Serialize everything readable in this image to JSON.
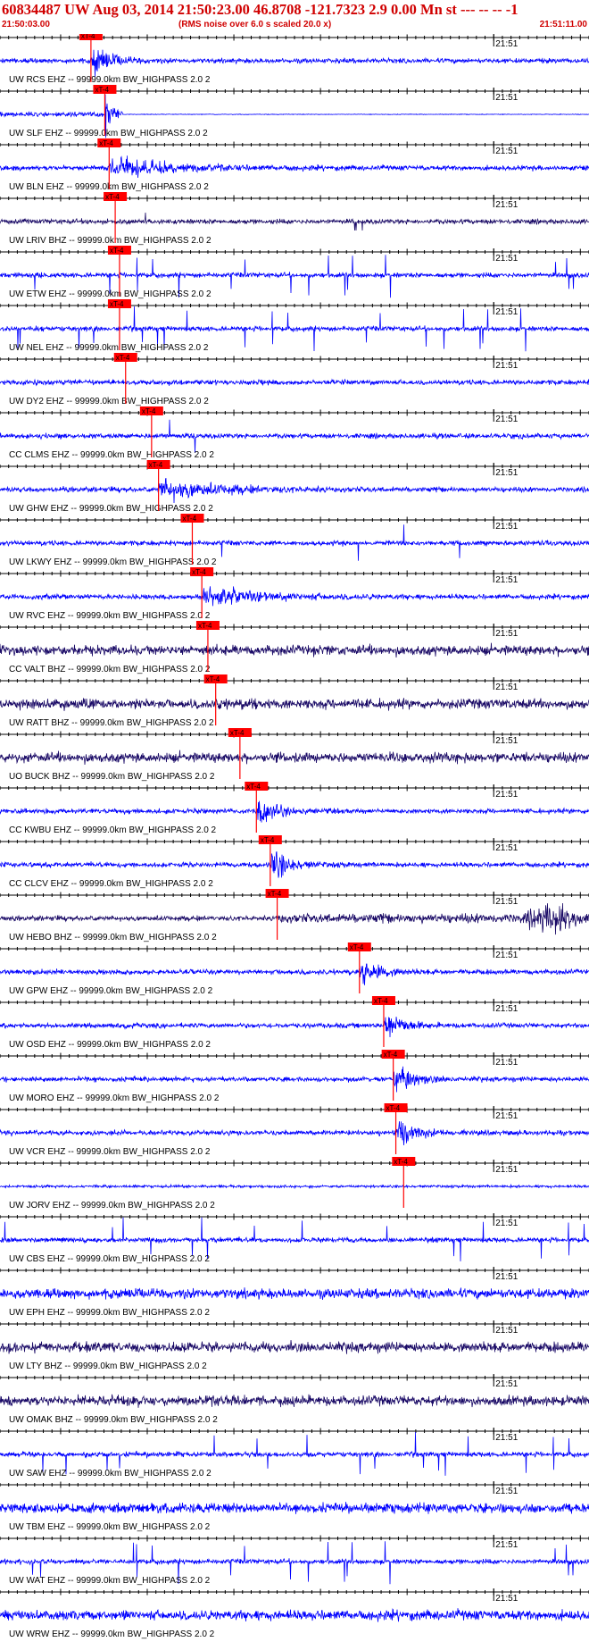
{
  "header": {
    "title": "60834487 UW Aug 03, 2014 21:50:23.00   46.8708 -121.7323  2.9 0.00 Mn st --- -- --  -1",
    "start_time": "21:50:03.00",
    "rms_note": "(RMS noise over 6.0 s scaled 20.0 x)",
    "end_time": "21:51:11.00"
  },
  "colors": {
    "trace": "#0000ff",
    "trace_dark": "#1a0a66",
    "pick": "#ff0000",
    "label_text": "#000000",
    "title_text": "#d00000"
  },
  "chart_data": {
    "type": "line",
    "title": "60834487 UW Aug 03, 2014 21:50:23.00   46.8708 -121.7323  2.9 0.00 Mn st --- -- --  -1",
    "x_range": [
      "21:50:03.00",
      "21:51:11.00"
    ],
    "time_marker": "21:51",
    "pick_label": "xT-4",
    "tick_interval_s": 1,
    "filter": "99999.0km BW_HIGHPASS  2.0  2",
    "traces": [
      {
        "label": "UW RCS EHZ -- 99999.0km BW_HIGHPASS  2.0  2",
        "pick_s": 10.5,
        "style": "burst",
        "dark": false
      },
      {
        "label": "UW SLF EHZ -- 99999.0km BW_HIGHPASS  2.0  2",
        "pick_s": 12.1,
        "style": "flat_after",
        "dark": false
      },
      {
        "label": "UW BLN EHZ -- 99999.0km BW_HIGHPASS  2.0  2",
        "pick_s": 12.6,
        "style": "emergent",
        "dark": false
      },
      {
        "label": "UW LRIV BHZ -- 99999.0km BW_HIGHPASS  2.0  2",
        "pick_s": 13.3,
        "style": "sparse",
        "dark": true
      },
      {
        "label": "UW ETW EHZ -- 99999.0km BW_HIGHPASS  2.0  2",
        "pick_s": 13.8,
        "style": "spiky",
        "dark": false
      },
      {
        "label": "UW NEL EHZ -- 99999.0km BW_HIGHPASS  2.0  2",
        "pick_s": 13.8,
        "style": "spiky",
        "dark": false
      },
      {
        "label": "UW DY2 EHZ -- 99999.0km BW_HIGHPASS  2.0  2",
        "pick_s": 14.5,
        "style": "quiet_spikes",
        "dark": false
      },
      {
        "label": "CC CLMS EHZ -- 99999.0km BW_HIGHPASS  2.0  2",
        "pick_s": 17.5,
        "style": "quiet_spikes",
        "dark": false
      },
      {
        "label": "UW GHW EHZ -- 99999.0km BW_HIGHPASS  2.0  2",
        "pick_s": 18.3,
        "style": "emergent",
        "dark": false
      },
      {
        "label": "UW LKWY EHZ -- 99999.0km BW_HIGHPASS  2.0  2",
        "pick_s": 22.2,
        "style": "quiet_spikes",
        "dark": false
      },
      {
        "label": "UW RVC EHZ -- 99999.0km BW_HIGHPASS  2.0  2",
        "pick_s": 23.3,
        "style": "emergent",
        "dark": false
      },
      {
        "label": "CC VALT BHZ -- 99999.0km BW_HIGHPASS  2.0  2",
        "pick_s": 24.0,
        "style": "noise",
        "dark": true
      },
      {
        "label": "UW RATT BHZ -- 99999.0km BW_HIGHPASS  2.0  2",
        "pick_s": 24.9,
        "style": "noise",
        "dark": true
      },
      {
        "label": "UO BUCK BHZ -- 99999.0km BW_HIGHPASS  2.0  2",
        "pick_s": 27.7,
        "style": "noise",
        "dark": true
      },
      {
        "label": "CC KWBU EHZ -- 99999.0km BW_HIGHPASS  2.0  2",
        "pick_s": 29.6,
        "style": "burst",
        "dark": false
      },
      {
        "label": "CC CLCV EHZ -- 99999.0km BW_HIGHPASS  2.0  2",
        "pick_s": 31.2,
        "style": "burst",
        "dark": false
      },
      {
        "label": "UW HEBO BHZ -- 99999.0km BW_HIGHPASS  2.0  2",
        "pick_s": 32.0,
        "style": "late_burst",
        "dark": true
      },
      {
        "label": "UW GPW EHZ -- 99999.0km BW_HIGHPASS  2.0  2",
        "pick_s": 41.5,
        "style": "burst",
        "dark": false
      },
      {
        "label": "UW OSD EHZ -- 99999.0km BW_HIGHPASS  2.0  2",
        "pick_s": 44.3,
        "style": "burst",
        "dark": false
      },
      {
        "label": "UW MORO EHZ -- 99999.0km BW_HIGHPASS  2.0  2",
        "pick_s": 45.4,
        "style": "burst",
        "dark": false
      },
      {
        "label": "UW VCR EHZ -- 99999.0km BW_HIGHPASS  2.0  2",
        "pick_s": 45.7,
        "style": "burst",
        "dark": false
      },
      {
        "label": "UW JORV EHZ -- 99999.0km BW_HIGHPASS  2.0  2",
        "pick_s": 46.6,
        "style": "quiet",
        "dark": false
      },
      {
        "label": "UW CBS EHZ -- 99999.0km BW_HIGHPASS  2.0  2",
        "pick_s": null,
        "style": "spiky",
        "dark": false
      },
      {
        "label": "UW EPH EHZ -- 99999.0km BW_HIGHPASS  2.0  2",
        "pick_s": null,
        "style": "noise",
        "dark": false
      },
      {
        "label": "UW LTY BHZ -- 99999.0km BW_HIGHPASS  2.0  2",
        "pick_s": null,
        "style": "noise",
        "dark": true
      },
      {
        "label": "UW OMAK BHZ -- 99999.0km BW_HIGHPASS  2.0  2",
        "pick_s": null,
        "style": "noise",
        "dark": true
      },
      {
        "label": "UW SAW EHZ -- 99999.0km BW_HIGHPASS  2.0  2",
        "pick_s": null,
        "style": "spiky",
        "dark": false
      },
      {
        "label": "UW TBM EHZ -- 99999.0km BW_HIGHPASS  2.0  2",
        "pick_s": null,
        "style": "noise",
        "dark": false
      },
      {
        "label": "UW WAT EHZ -- 99999.0km BW_HIGHPASS  2.0  2",
        "pick_s": null,
        "style": "spiky",
        "dark": false
      },
      {
        "label": "UW WRW EHZ -- 99999.0km BW_HIGHPASS  2.0  2",
        "pick_s": null,
        "style": "noise",
        "dark": false
      }
    ]
  }
}
